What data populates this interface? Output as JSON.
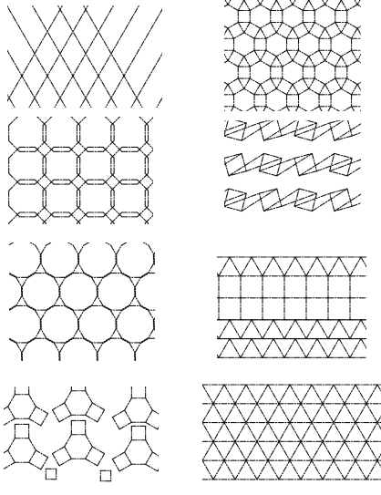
{
  "figure": {
    "panels": [
      {
        "id": "triangle-hexagon-tiling",
        "kind": "kagome"
      },
      {
        "id": "hexagon-square-triangle-tiling",
        "kind": "rhombitrihex"
      },
      {
        "id": "octagon-square-tiling",
        "kind": "octagons"
      },
      {
        "id": "square-triangle-tiling",
        "kind": "snubsquare"
      },
      {
        "id": "dodecagon-triangle-tiling",
        "kind": "dodecagons"
      },
      {
        "id": "square-triangle-strip-tiling",
        "kind": "strips"
      },
      {
        "id": "dodecagon-hexagon-square-ring",
        "kind": "ring"
      },
      {
        "id": "triangular-tiling",
        "kind": "triangles"
      }
    ],
    "line_color": "#111111",
    "background_color": "#ffffff"
  }
}
